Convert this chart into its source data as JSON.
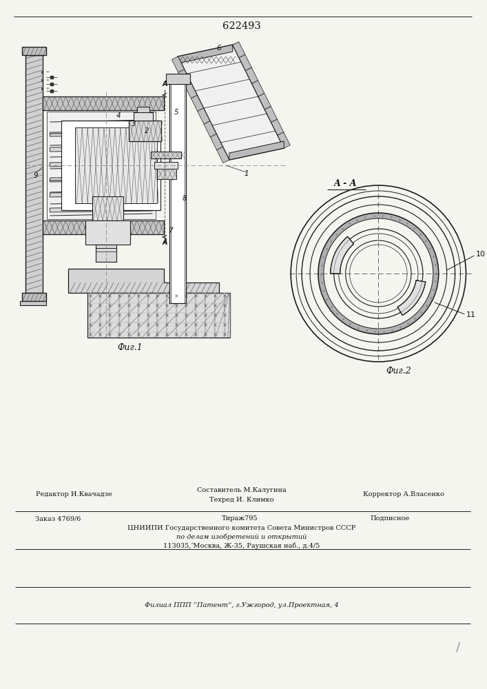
{
  "patent_number": "622493",
  "fig1_label": "Фиг.1",
  "fig2_label": "Фиг.2",
  "bg_color": "#f5f5f0",
  "line_color": "#1a1a1a",
  "text_color": "#111111",
  "editor_line": "Редактор И.Квачадзе",
  "composer_line1": "Составитель М.Калугина",
  "composer_line2": "Техред И. Климко",
  "corrector_line": "Корректор А.Власенко",
  "order_line": "Заказ 4769/6",
  "tirazh_line": "Тираж795",
  "podpisnoe_line": "Подписное",
  "org_line1": "ЦНИИПИ Государственного комитета Совета Министров СССР",
  "org_line2": "по делам изобретений и открытий",
  "org_line3": "113035,‘Москва, Ж-35, Раушская наб., д.4/5",
  "filial_line": "Филиал ППП ''Патент'', г.Ужгород, ул.Проектная, 4"
}
